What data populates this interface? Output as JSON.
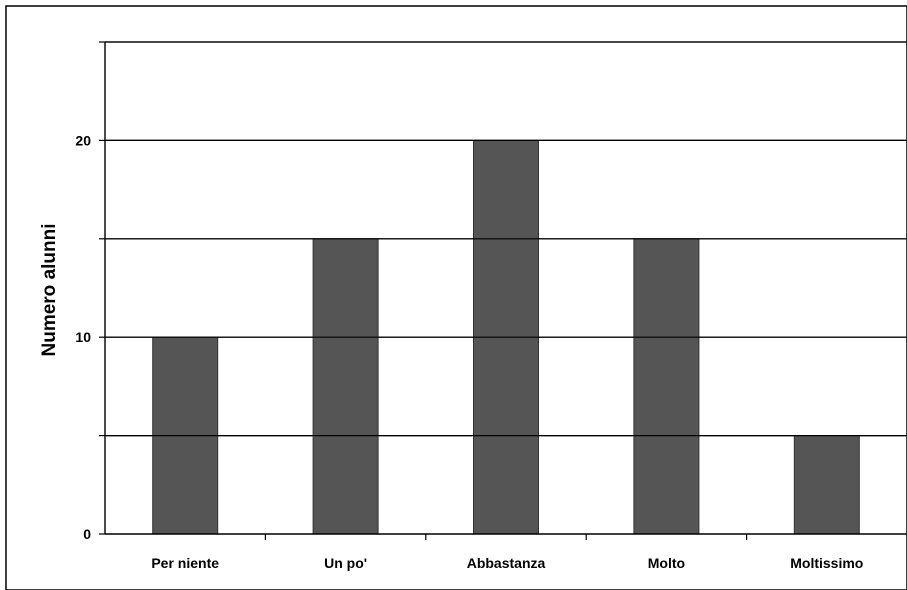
{
  "chart_data": {
    "type": "bar",
    "title": "",
    "xlabel": "",
    "ylabel": "Numero alunni",
    "categories": [
      "Per niente",
      "Un po'",
      "Abbastanza",
      "Molto",
      "Moltissimo"
    ],
    "values": [
      10,
      15,
      20,
      15,
      5
    ],
    "ylim": [
      0,
      25
    ],
    "y_ticks": [
      0,
      10,
      20
    ],
    "y_tick_labels": [
      "0",
      "10",
      "20"
    ],
    "grid_lines_at": [
      5,
      10,
      15,
      20,
      25
    ],
    "grid": true,
    "legend": "none",
    "bar_color": "#555555",
    "line_color": "#000000"
  }
}
